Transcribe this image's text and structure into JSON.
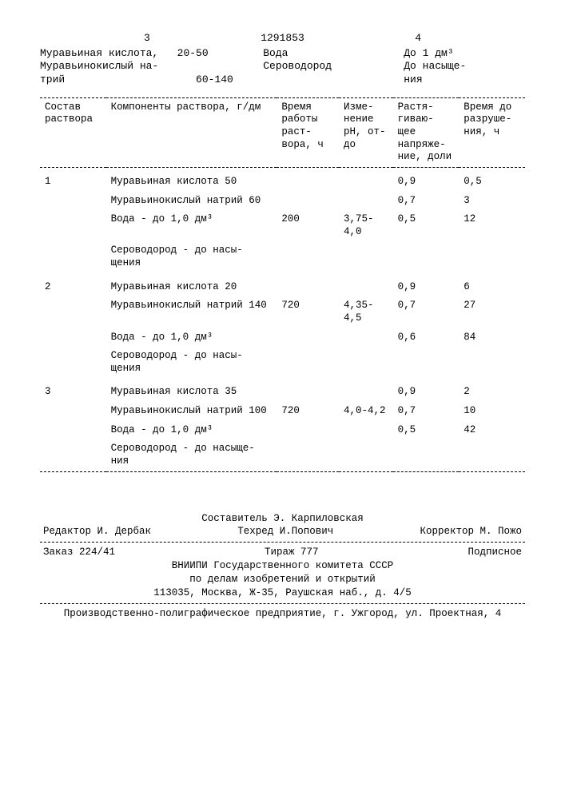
{
  "top": {
    "left_col": "3",
    "patent": "1291853",
    "right_col": "4"
  },
  "pre": {
    "left_l1": "Муравьиная кислота,",
    "left_v1": "20-50",
    "left_l2": "Муравьинокислый на-",
    "left_l3": "трий",
    "left_v2": "60-140",
    "mid_l1": "Вода",
    "mid_l2": "Сероводород",
    "right_l1": "До 1 дм³",
    "right_l2": "До насыще-",
    "right_l3": "ния"
  },
  "headers": {
    "h1": "Состав раствора",
    "h2": "Компоненты раствора, г/дм",
    "h3": "Время работы раст- вора, ч",
    "h4": "Изме- нение рН, от-до",
    "h5": "Растя- гиваю- щее напряже- ние, доли",
    "h6": "Время до разруше- ния, ч"
  },
  "rows": [
    {
      "n": "1",
      "comp": "Муравьиная кислота 50",
      "t": "",
      "ph": "",
      "s": "0,9",
      "d": "0,5"
    },
    {
      "n": "",
      "comp": "Муравьинокислый натрий 60",
      "t": "",
      "ph": "",
      "s": "0,7",
      "d": "3"
    },
    {
      "n": "",
      "comp": "Вода - до 1,0 дм³",
      "t": "200",
      "ph": "3,75- 4,0",
      "s": "0,5",
      "d": "12"
    },
    {
      "n": "",
      "comp": "Сероводород - до насы- щения",
      "t": "",
      "ph": "",
      "s": "",
      "d": ""
    },
    {
      "n": "2",
      "comp": "Муравьиная кислота 20",
      "t": "",
      "ph": "",
      "s": "0,9",
      "d": "6"
    },
    {
      "n": "",
      "comp": "Муравьинокислый натрий 140",
      "t": "720",
      "ph": "4,35- 4,5",
      "s": "0,7",
      "d": "27"
    },
    {
      "n": "",
      "comp": "Вода - до 1,0 дм³",
      "t": "",
      "ph": "",
      "s": "0,6",
      "d": "84"
    },
    {
      "n": "",
      "comp": "Сероводород - до насы- щения",
      "t": "",
      "ph": "",
      "s": "",
      "d": ""
    },
    {
      "n": "3",
      "comp": "Муравьиная кислота 35",
      "t": "",
      "ph": "",
      "s": "0,9",
      "d": "2"
    },
    {
      "n": "",
      "comp": "Муравьинокислый натрий 100",
      "t": "720",
      "ph": "4,0-4,2",
      "s": "0,7",
      "d": "10"
    },
    {
      "n": "",
      "comp": "Вода - до 1,0 дм³",
      "t": "",
      "ph": "",
      "s": "0,5",
      "d": "42"
    },
    {
      "n": "",
      "comp": "Сероводород - до насыще- ния",
      "t": "",
      "ph": "",
      "s": "",
      "d": ""
    }
  ],
  "footer": {
    "compositor": "Составитель Э. Карпиловская",
    "editor": "Редактор И. Дербак",
    "tech": "Техред И.Попович",
    "corr": "Корректор М. Пожо",
    "order": "Заказ 224/41",
    "tiraj": "Тираж 777",
    "sign": "Подписное",
    "org1": "ВНИИПИ Государственного комитета СССР",
    "org2": "по делам изобретений и открытий",
    "addr": "113035, Москва, Ж-35, Раушская наб., д. 4/5",
    "bottom": "Производственно-полиграфическое предприятие, г. Ужгород, ул. Проектная, 4"
  }
}
